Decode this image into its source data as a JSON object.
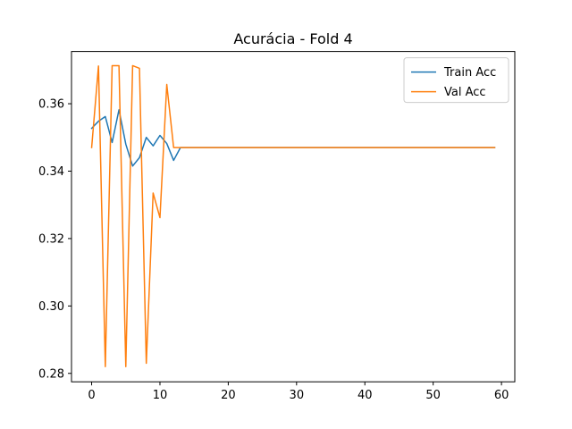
{
  "chart_data": {
    "type": "line",
    "title": "Acurácia - Fold 4",
    "xlabel": "",
    "ylabel": "",
    "xlim": [
      -2.95,
      61.95
    ],
    "ylim": [
      0.2775,
      0.3755
    ],
    "xticks": [
      0,
      10,
      20,
      30,
      40,
      50,
      60
    ],
    "yticks": [
      0.28,
      0.3,
      0.32,
      0.34,
      0.36
    ],
    "ytick_labels": [
      "0.28",
      "0.30",
      "0.32",
      "0.34",
      "0.36"
    ],
    "xtick_labels": [
      "0",
      "10",
      "20",
      "30",
      "40",
      "50",
      "60"
    ],
    "grid": false,
    "legend_position": "upper right",
    "series": [
      {
        "name": "Train Acc",
        "color": "#1f77b4",
        "x": [
          0,
          1,
          2,
          3,
          4,
          5,
          6,
          7,
          8,
          9,
          10,
          11,
          12,
          13,
          14,
          15,
          16,
          17,
          18,
          19,
          20,
          21,
          22,
          23,
          24,
          25,
          26,
          27,
          28,
          29,
          30,
          31,
          32,
          33,
          34,
          35,
          36,
          37,
          38,
          39,
          40,
          41,
          42,
          43,
          44,
          45,
          46,
          47,
          48,
          49,
          50,
          51,
          52,
          53,
          54,
          55,
          56,
          57,
          58,
          59
        ],
        "y": [
          0.3527,
          0.3548,
          0.3562,
          0.3485,
          0.3582,
          0.348,
          0.3415,
          0.344,
          0.35,
          0.3475,
          0.3506,
          0.3482,
          0.3432,
          0.347,
          0.347,
          0.347,
          0.347,
          0.347,
          0.347,
          0.347,
          0.347,
          0.347,
          0.347,
          0.347,
          0.347,
          0.347,
          0.347,
          0.347,
          0.347,
          0.347,
          0.347,
          0.347,
          0.347,
          0.347,
          0.347,
          0.347,
          0.347,
          0.347,
          0.347,
          0.347,
          0.347,
          0.347,
          0.347,
          0.347,
          0.347,
          0.347,
          0.347,
          0.347,
          0.347,
          0.347,
          0.347,
          0.347,
          0.347,
          0.347,
          0.347,
          0.347,
          0.347,
          0.347,
          0.347,
          0.347
        ]
      },
      {
        "name": "Val Acc",
        "color": "#ff7f0e",
        "x": [
          0,
          1,
          2,
          3,
          4,
          5,
          6,
          7,
          8,
          9,
          10,
          11,
          12,
          13,
          14,
          15,
          16,
          17,
          18,
          19,
          20,
          21,
          22,
          23,
          24,
          25,
          26,
          27,
          28,
          29,
          30,
          31,
          32,
          33,
          34,
          35,
          36,
          37,
          38,
          39,
          40,
          41,
          42,
          43,
          44,
          45,
          46,
          47,
          48,
          49,
          50,
          51,
          52,
          53,
          54,
          55,
          56,
          57,
          58,
          59
        ],
        "y": [
          0.347,
          0.3712,
          0.282,
          0.3713,
          0.3713,
          0.282,
          0.3713,
          0.3705,
          0.283,
          0.3335,
          0.3262,
          0.3657,
          0.347,
          0.347,
          0.347,
          0.347,
          0.347,
          0.347,
          0.347,
          0.347,
          0.347,
          0.347,
          0.347,
          0.347,
          0.347,
          0.347,
          0.347,
          0.347,
          0.347,
          0.347,
          0.347,
          0.347,
          0.347,
          0.347,
          0.347,
          0.347,
          0.347,
          0.347,
          0.347,
          0.347,
          0.347,
          0.347,
          0.347,
          0.347,
          0.347,
          0.347,
          0.347,
          0.347,
          0.347,
          0.347,
          0.347,
          0.347,
          0.347,
          0.347,
          0.347,
          0.347,
          0.347,
          0.347,
          0.347,
          0.347
        ]
      }
    ]
  }
}
